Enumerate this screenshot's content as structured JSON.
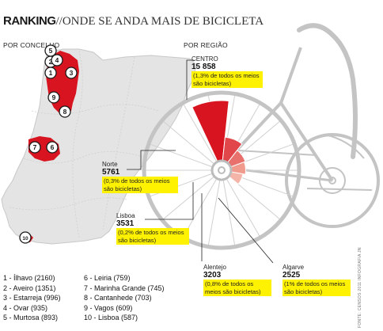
{
  "title": {
    "main": "RANKING",
    "sub": "//ONDE SE ANDA MAIS DE BICICLETA"
  },
  "sections": {
    "by_municipality": "POR CONCELHO",
    "by_region": "POR REGIÃO"
  },
  "colors": {
    "centro": "#d7141f",
    "norte": "#e0464a",
    "lisboa": "#e8716d",
    "alentejo": "#f09b8e",
    "algarve": "#f4b5a8",
    "highlight": "#fff200"
  },
  "chart_data": {
    "type": "pie",
    "title": "POR REGIÃO",
    "slices": [
      {
        "name": "CENTRO",
        "value": 15858,
        "value_label": "15 858",
        "note": "(1,3% de todos os meios são bicicletas)"
      },
      {
        "name": "Norte",
        "value": 5761,
        "value_label": "5761",
        "note": "(0,3% de todos os meios são bicicletas)"
      },
      {
        "name": "Lisboa",
        "value": 3531,
        "value_label": "3531",
        "note": "(0,2% de todos os meios são bicicletas)"
      },
      {
        "name": "Alentejo",
        "value": 3203,
        "value_label": "3203",
        "note": "(0,8% de todos os meios são bicicletas)"
      },
      {
        "name": "Algarve",
        "value": 2525,
        "value_label": "2525",
        "note": "(1% de todos os meios são bicicletas)"
      }
    ]
  },
  "ranking": [
    "1 - Ílhavo (2160)",
    "2 - Aveiro (1351)",
    "3 - Estarreja (996)",
    "4 - Ovar (935)",
    "5 - Murtosa (893)",
    "6 - Leiria (759)",
    "7 - Marinha Grande (745)",
    "8 - Cantanhede (703)",
    "9 - Vagos (609)",
    "10 - Lisboa (587)"
  ],
  "map_markers": [
    "1",
    "2",
    "3",
    "4",
    "5",
    "6",
    "7",
    "8",
    "9",
    "10"
  ],
  "source": "FONTE: CENSOS 2011   INFOGRAFIA JN"
}
